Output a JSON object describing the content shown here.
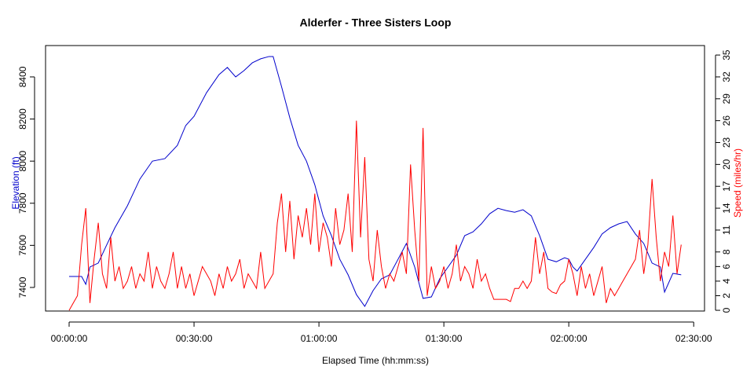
{
  "chart_data": {
    "type": "line",
    "title": "Alderfer - Three Sisters Loop",
    "x_label": "Elapsed Time (hh:mm:ss)",
    "y_label": "Elevation (ft)",
    "y2_label": "Speed (miles/hr)",
    "xlim": [
      -5.66,
      152.6
    ],
    "xticks": [
      {
        "value": 0,
        "label": "00:00:00"
      },
      {
        "value": 30,
        "label": "00:30:00"
      },
      {
        "value": 60,
        "label": "01:00:00"
      },
      {
        "value": 90,
        "label": "01:30:00"
      },
      {
        "value": 120,
        "label": "02:00:00"
      },
      {
        "value": 150,
        "label": "02:30:00"
      }
    ],
    "ylim": [
      7288,
      8549
    ],
    "yticks": [
      7400,
      7600,
      7800,
      8000,
      8200,
      8400
    ],
    "y2lim": [
      -0.1,
      36.3
    ],
    "y2ticks": [
      0,
      2,
      4,
      6,
      8,
      11,
      14,
      17,
      20,
      23,
      26,
      29,
      32,
      35
    ],
    "series": [
      {
        "color": "#0000cc",
        "axis": "y",
        "x": [
          0,
          3,
          4,
          5,
          7,
          9,
          11,
          14,
          17,
          20,
          23,
          26,
          28,
          30,
          33,
          36,
          38,
          40,
          42,
          44,
          46,
          48,
          49,
          51,
          53,
          55,
          57,
          59,
          61,
          63,
          65,
          67,
          69,
          71,
          73,
          75,
          77,
          79,
          81,
          83,
          85,
          87,
          89,
          91,
          93,
          95,
          97,
          99,
          101,
          103,
          105,
          107,
          109,
          111,
          113,
          115,
          117,
          119,
          120,
          121,
          122,
          124,
          126,
          128,
          130,
          132,
          134,
          136,
          138,
          140,
          142,
          143,
          145,
          147
        ],
        "values": [
          7452,
          7452,
          7415,
          7497,
          7516,
          7601,
          7684,
          7788,
          7915,
          8000,
          8012,
          8075,
          8169,
          8213,
          8325,
          8411,
          8445,
          8400,
          8430,
          8467,
          8486,
          8497,
          8497,
          8355,
          8206,
          8075,
          8000,
          7888,
          7740,
          7646,
          7534,
          7460,
          7366,
          7310,
          7385,
          7441,
          7460,
          7534,
          7609,
          7497,
          7348,
          7355,
          7441,
          7497,
          7553,
          7646,
          7664,
          7702,
          7750,
          7776,
          7765,
          7757,
          7769,
          7740,
          7646,
          7534,
          7522,
          7541,
          7534,
          7497,
          7478,
          7534,
          7590,
          7654,
          7684,
          7702,
          7713,
          7654,
          7609,
          7516,
          7497,
          7378,
          7467,
          7460
        ]
      },
      {
        "color": "#ff0000",
        "axis": "y2",
        "x": [
          0,
          1,
          2,
          3,
          4,
          5,
          6,
          7,
          8,
          9,
          10,
          11,
          12,
          13,
          14,
          15,
          16,
          17,
          18,
          19,
          20,
          21,
          22,
          23,
          24,
          25,
          26,
          27,
          28,
          29,
          30,
          31,
          32,
          33,
          34,
          35,
          36,
          37,
          38,
          39,
          40,
          41,
          42,
          43,
          44,
          45,
          46,
          47,
          48,
          49,
          50,
          51,
          52,
          53,
          54,
          55,
          56,
          57,
          58,
          59,
          60,
          61,
          62,
          63,
          64,
          65,
          66,
          67,
          68,
          69,
          70,
          71,
          72,
          73,
          74,
          75,
          76,
          77,
          78,
          79,
          80,
          81,
          82,
          83,
          84,
          85,
          86,
          87,
          88,
          89,
          90,
          91,
          92,
          93,
          94,
          95,
          96,
          97,
          98,
          99,
          100,
          101,
          102,
          103,
          104,
          105,
          106,
          107,
          108,
          109,
          110,
          111,
          112,
          113,
          114,
          115,
          116,
          117,
          118,
          119,
          120,
          121,
          122,
          123,
          124,
          125,
          126,
          127,
          128,
          129,
          130,
          131,
          132,
          133,
          134,
          135,
          136,
          137,
          138,
          139,
          140,
          141,
          142,
          143,
          144,
          145,
          146,
          147
        ],
        "values": [
          0,
          1,
          2,
          9,
          14,
          1,
          7,
          12,
          5,
          3,
          10,
          4,
          6,
          3,
          4,
          6,
          3,
          5,
          4,
          8,
          3,
          6,
          4,
          3,
          5,
          8,
          3,
          6,
          3,
          5,
          2,
          4,
          6,
          5,
          4,
          2,
          5,
          3,
          6,
          4,
          5,
          7,
          3,
          5,
          4,
          3,
          8,
          3,
          4,
          5,
          12,
          16,
          8,
          15,
          7,
          13,
          10,
          14,
          9,
          16,
          8,
          12,
          10,
          6,
          14,
          9,
          11,
          16,
          8,
          26,
          10,
          21,
          7,
          4,
          11,
          6,
          3,
          5,
          4,
          6,
          8,
          5,
          20,
          11,
          4,
          25,
          2,
          6,
          3,
          4,
          6,
          3,
          5,
          9,
          4,
          6,
          5,
          3,
          7,
          4,
          5,
          3,
          1.5,
          1.5,
          1.5,
          1.5,
          1.2,
          3,
          3,
          4,
          3,
          4,
          10,
          5,
          8,
          3,
          2.5,
          2.3,
          3.5,
          4,
          7,
          5,
          2,
          6,
          3,
          5,
          2,
          4,
          6,
          1,
          3,
          2,
          3,
          4,
          5,
          6,
          7,
          11,
          5,
          9,
          18,
          10,
          4,
          8,
          6,
          13,
          5,
          9
        ]
      }
    ]
  }
}
